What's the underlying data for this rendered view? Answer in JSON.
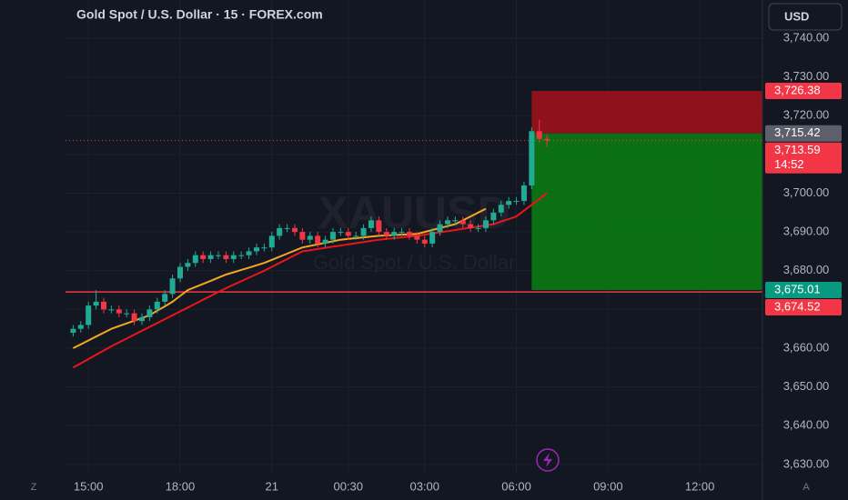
{
  "chart_data": {
    "type": "candlestick",
    "title": "Gold Spot / U.S. Dollar · 15 · FOREX.com",
    "currency": "USD",
    "watermark": "XAUUSD",
    "watermark_subtitle": "Gold Spot / U.S. Dollar",
    "controls": {
      "left": "Z",
      "right": "A"
    },
    "grid": true,
    "up_color": "#22ab94",
    "down_color": "#f23645",
    "xlim": [
      -1,
      90.2
    ],
    "xticks": [
      {
        "value": 2,
        "label": "15:00"
      },
      {
        "value": 14,
        "label": "18:00"
      },
      {
        "value": 26,
        "label": "21"
      },
      {
        "value": 36,
        "label": "00:30"
      },
      {
        "value": 46,
        "label": "03:00"
      },
      {
        "value": 58,
        "label": "06:00"
      },
      {
        "value": 70,
        "label": "09:00"
      },
      {
        "value": 82,
        "label": "12:00"
      }
    ],
    "ylim": [
      3627.4,
      3749.85
    ],
    "yticks": [
      {
        "value": 3630,
        "label": "3,630.00"
      },
      {
        "value": 3640,
        "label": "3,640.00"
      },
      {
        "value": 3650,
        "label": "3,650.00"
      },
      {
        "value": 3660,
        "label": "3,660.00"
      },
      {
        "value": 3670,
        "label": "3,670.00"
      },
      {
        "value": 3680,
        "label": "3,680.00"
      },
      {
        "value": 3690,
        "label": "3,690.00"
      },
      {
        "value": 3700,
        "label": "3,700.00"
      },
      {
        "value": 3710,
        "label": "3,710.00"
      },
      {
        "value": 3720,
        "label": "3,720.00"
      },
      {
        "value": 3730,
        "label": "3,730.00"
      },
      {
        "value": 3740,
        "label": "3,740.00"
      }
    ],
    "open": [
      3664,
      3665,
      3666,
      3671,
      3672,
      3670,
      3670,
      3669,
      3669,
      3667,
      3668,
      3670,
      3672,
      3674,
      3678,
      3681,
      3682,
      3684,
      3683,
      3684,
      3684,
      3683,
      3684,
      3684,
      3685,
      3686,
      3686,
      3689,
      3691,
      3691,
      3690,
      3688,
      3689,
      3687,
      3688,
      3690,
      3690,
      3689,
      3689,
      3691,
      3693,
      3690,
      3689,
      3690,
      3690,
      3689,
      3688,
      3687,
      3690,
      3692,
      3693,
      3693,
      3692,
      3691,
      3691,
      3693,
      3695,
      3697,
      3698,
      3698,
      3702,
      3716,
      3714
    ],
    "high": [
      3666,
      3667,
      3672,
      3675,
      3673,
      3671,
      3671,
      3670,
      3670,
      3669,
      3671,
      3673,
      3675,
      3679,
      3682,
      3683,
      3685,
      3685,
      3685,
      3685,
      3685,
      3685,
      3685,
      3686,
      3687,
      3687,
      3690,
      3692,
      3692,
      3692,
      3691,
      3690,
      3690,
      3689,
      3691,
      3691,
      3691,
      3690,
      3692,
      3694,
      3694,
      3691,
      3691,
      3691,
      3691,
      3690,
      3689,
      3691,
      3693,
      3694,
      3694,
      3694,
      3693,
      3692,
      3694,
      3696,
      3698,
      3699,
      3699,
      3703,
      3717,
      3719,
      3715
    ],
    "low": [
      3663,
      3664,
      3665,
      3670,
      3669,
      3669,
      3668,
      3668,
      3666,
      3666,
      3667,
      3669,
      3671,
      3673,
      3677,
      3680,
      3681,
      3682,
      3682,
      3683,
      3682,
      3682,
      3683,
      3683,
      3684,
      3685,
      3685,
      3688,
      3690,
      3689,
      3687,
      3687,
      3686,
      3686,
      3687,
      3689,
      3688,
      3688,
      3688,
      3690,
      3689,
      3688,
      3688,
      3689,
      3688,
      3687,
      3686,
      3686,
      3689,
      3691,
      3692,
      3691,
      3690,
      3690,
      3690,
      3692,
      3694,
      3696,
      3697,
      3697,
      3701,
      3713,
      3712
    ],
    "close": [
      3665,
      3666,
      3671,
      3672,
      3670,
      3670,
      3669,
      3669,
      3667,
      3668,
      3670,
      3672,
      3674,
      3678,
      3681,
      3682,
      3684,
      3683,
      3684,
      3684,
      3683,
      3684,
      3684,
      3685,
      3686,
      3686,
      3689,
      3691,
      3691,
      3690,
      3688,
      3689,
      3687,
      3688,
      3690,
      3690,
      3689,
      3689,
      3691,
      3693,
      3690,
      3689,
      3690,
      3690,
      3689,
      3688,
      3687,
      3690,
      3692,
      3693,
      3693,
      3692,
      3691,
      3691,
      3693,
      3695,
      3697,
      3698,
      3698,
      3702,
      3716,
      3714,
      3713.59
    ],
    "moving_averages": [
      {
        "color": "#f5a623",
        "values": [
          3660,
          3661,
          3662,
          3663,
          3664,
          3665,
          3665.7,
          3666.4,
          3667.1,
          3667.8,
          3668.5,
          3669.7,
          3670.8,
          3672,
          3673.5,
          3675,
          3675.8,
          3676.6,
          3677.4,
          3678.2,
          3679,
          3679.6,
          3680.2,
          3680.8,
          3681.4,
          3682,
          3682.8,
          3683.6,
          3684.4,
          3685.2,
          3686,
          3686.4,
          3686.8,
          3687.2,
          3687.6,
          3688,
          3688.2,
          3688.4,
          3688.6,
          3688.8,
          3689,
          3689.1,
          3689.2,
          3689.3,
          3689.4,
          3689.5,
          3690,
          3690.5,
          3691,
          3691.5,
          3692,
          3693,
          3694,
          3695,
          3696,
          null,
          null,
          null,
          null,
          null,
          null,
          null,
          null
        ]
      },
      {
        "color": "#e8161c",
        "values": [
          3655,
          3656.1,
          3657.2,
          3658.3,
          3659.4,
          3660.5,
          3661.5,
          3662.5,
          3663.5,
          3664.5,
          3665.5,
          3666.5,
          3667.5,
          3668.5,
          3669.5,
          3670.5,
          3671.5,
          3672.5,
          3673.5,
          3674.5,
          3675.5,
          3676.4,
          3677.3,
          3678.2,
          3679.1,
          3680,
          3681,
          3682,
          3683,
          3684,
          3685,
          3685.3,
          3685.6,
          3685.9,
          3686.2,
          3686.5,
          3686.8,
          3687.1,
          3687.4,
          3687.7,
          3688,
          3688.2,
          3688.4,
          3688.6,
          3688.8,
          3689,
          3689.3,
          3689.6,
          3689.9,
          3690.2,
          3690.5,
          3690.8,
          3691.1,
          3691.4,
          3691.7,
          3692,
          3692.7,
          3693.3,
          3694,
          3695.5,
          3697,
          3698.5,
          3700
        ]
      }
    ],
    "position": {
      "start": 60,
      "stop": 3726.38,
      "entry": 3715.42,
      "target": 3675.01
    },
    "horizontal_line": 3674.52,
    "current_price": 3713.59,
    "countdown": "14:52",
    "price_labels": [
      {
        "value": 3726.38,
        "label": "3,726.38",
        "color": "#f23645"
      },
      {
        "value": 3715.42,
        "label": "3,715.42",
        "color": "#5d606b"
      },
      {
        "value": 3713.59,
        "label": "3,713.59",
        "color": "#f23645"
      },
      {
        "value": 3675.01,
        "label": "3,675.01",
        "color": "#089981"
      },
      {
        "value": 3674.52,
        "label": "3,674.52",
        "color": "#f23645"
      }
    ]
  }
}
